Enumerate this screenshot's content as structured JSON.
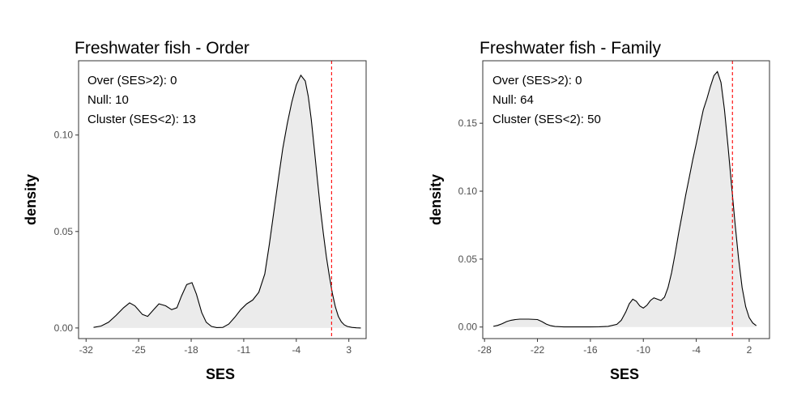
{
  "chart_data": [
    {
      "type": "area",
      "title": "Freshwater fish - Order",
      "xlabel": "SES",
      "ylabel": "density",
      "xlim": [
        -33,
        5.3
      ],
      "ylim": [
        -0.0055,
        0.1385
      ],
      "x_ticks": [
        -32,
        -25,
        -18,
        -11,
        -4,
        3
      ],
      "y_ticks": [
        0.0,
        0.05,
        0.1
      ],
      "y_tick_labels": [
        "0.00",
        "0.05",
        "0.10"
      ],
      "vline": {
        "x": 0.7,
        "color": "#ff0000",
        "style": "dashed"
      },
      "fill_color": "#ebebeb",
      "line_color": "#000000",
      "annotations": [
        "Over (SES>2): 0",
        "Null: 10",
        "Cluster (SES<2): 13"
      ],
      "grid": false,
      "legend": "none",
      "density": {
        "x": [
          -31,
          -30,
          -29,
          -28,
          -27,
          -26.2,
          -25.5,
          -24.5,
          -23.8,
          -23,
          -22.3,
          -21.4,
          -20.6,
          -19.9,
          -19.3,
          -18.6,
          -17.9,
          -17.3,
          -16.6,
          -16,
          -15.3,
          -14.6,
          -13.8,
          -13,
          -12.2,
          -11.4,
          -10.6,
          -9.8,
          -9,
          -8.2,
          -7.6,
          -7,
          -6.4,
          -5.8,
          -5.2,
          -4.6,
          -4,
          -3.4,
          -2.8,
          -2.4,
          -2,
          -1.6,
          -1.2,
          -0.8,
          -0.4,
          0,
          0.4,
          0.8,
          1.2,
          1.6,
          2,
          2.4,
          2.8,
          3.4,
          4,
          4.6
        ],
        "y": [
          0.0003,
          0.001,
          0.003,
          0.0065,
          0.0105,
          0.013,
          0.0115,
          0.007,
          0.006,
          0.0095,
          0.0125,
          0.0115,
          0.0095,
          0.0105,
          0.0165,
          0.0225,
          0.0235,
          0.0175,
          0.008,
          0.003,
          0.0008,
          0.0002,
          0.0003,
          0.002,
          0.0055,
          0.0095,
          0.0125,
          0.0145,
          0.0185,
          0.028,
          0.043,
          0.06,
          0.077,
          0.093,
          0.106,
          0.117,
          0.126,
          0.131,
          0.128,
          0.12,
          0.108,
          0.093,
          0.077,
          0.062,
          0.049,
          0.037,
          0.027,
          0.018,
          0.011,
          0.006,
          0.0032,
          0.0016,
          0.0008,
          0.0003,
          0.0001,
          0
        ]
      }
    },
    {
      "type": "area",
      "title": "Freshwater fish - Family",
      "xlabel": "SES",
      "ylabel": "density",
      "xlim": [
        -28.2,
        4.3
      ],
      "ylim": [
        -0.0085,
        0.196
      ],
      "x_ticks": [
        -28,
        -22,
        -16,
        -10,
        -4,
        2
      ],
      "y_ticks": [
        0.0,
        0.05,
        0.1,
        0.15
      ],
      "y_tick_labels": [
        "0.00",
        "0.05",
        "0.10",
        "0.15"
      ],
      "vline": {
        "x": 0.1,
        "color": "#ff0000",
        "style": "dashed"
      },
      "fill_color": "#ebebeb",
      "line_color": "#000000",
      "annotations": [
        "Over (SES>2): 0",
        "Null: 64",
        "Cluster (SES<2): 50"
      ],
      "grid": false,
      "legend": "none",
      "density": {
        "x": [
          -27,
          -26.5,
          -26,
          -25.5,
          -25,
          -24.5,
          -24,
          -23,
          -22,
          -21.5,
          -21,
          -20.5,
          -20,
          -19,
          -18,
          -17,
          -16,
          -15,
          -14,
          -13,
          -12.5,
          -12,
          -11.6,
          -11.2,
          -10.8,
          -10.4,
          -10,
          -9.6,
          -9.2,
          -8.8,
          -8.4,
          -8,
          -7.6,
          -7.2,
          -6.8,
          -6.4,
          -6,
          -5.6,
          -5.2,
          -4.8,
          -4.4,
          -4,
          -3.6,
          -3.2,
          -2.8,
          -2.4,
          -2,
          -1.6,
          -1.2,
          -0.8,
          -0.4,
          0,
          0.4,
          0.8,
          1.2,
          1.6,
          2,
          2.4,
          2.8
        ],
        "y": [
          0.0005,
          0.0012,
          0.0025,
          0.004,
          0.005,
          0.0055,
          0.0058,
          0.0058,
          0.0055,
          0.004,
          0.0022,
          0.001,
          0.0004,
          0.0001,
          0.0001,
          0.0001,
          0.0001,
          0.0002,
          0.0005,
          0.002,
          0.005,
          0.011,
          0.017,
          0.0205,
          0.019,
          0.0155,
          0.014,
          0.016,
          0.0195,
          0.0215,
          0.0205,
          0.0195,
          0.022,
          0.029,
          0.04,
          0.054,
          0.069,
          0.083,
          0.097,
          0.11,
          0.123,
          0.135,
          0.148,
          0.16,
          0.168,
          0.177,
          0.185,
          0.188,
          0.18,
          0.16,
          0.133,
          0.104,
          0.076,
          0.05,
          0.029,
          0.015,
          0.007,
          0.003,
          0.001
        ]
      }
    }
  ]
}
